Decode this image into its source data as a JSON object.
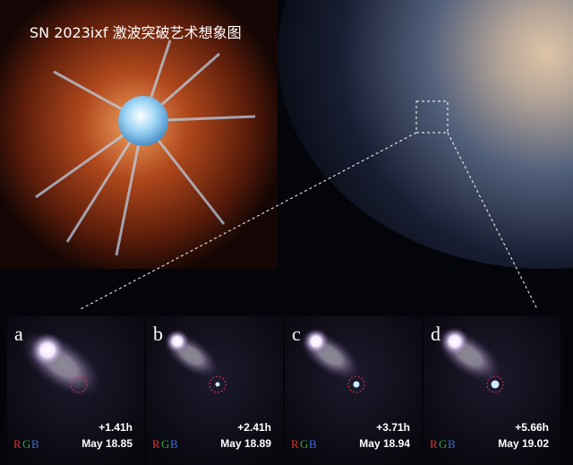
{
  "title": "SN 2023ixf 激波突破艺术想象图",
  "panels": [
    {
      "label": "a",
      "offset": "+1.41h",
      "date": "May 18.85",
      "channels": [
        "R",
        "G",
        "B"
      ]
    },
    {
      "label": "b",
      "offset": "+2.41h",
      "date": "May 18.89",
      "channels": [
        "R",
        "G",
        "B"
      ]
    },
    {
      "label": "c",
      "offset": "+3.71h",
      "date": "May 18.94",
      "channels": [
        "R",
        "G",
        "B"
      ]
    },
    {
      "label": "d",
      "offset": "+5.66h",
      "date": "May 19.02",
      "channels": [
        "R",
        "G",
        "B"
      ]
    }
  ]
}
